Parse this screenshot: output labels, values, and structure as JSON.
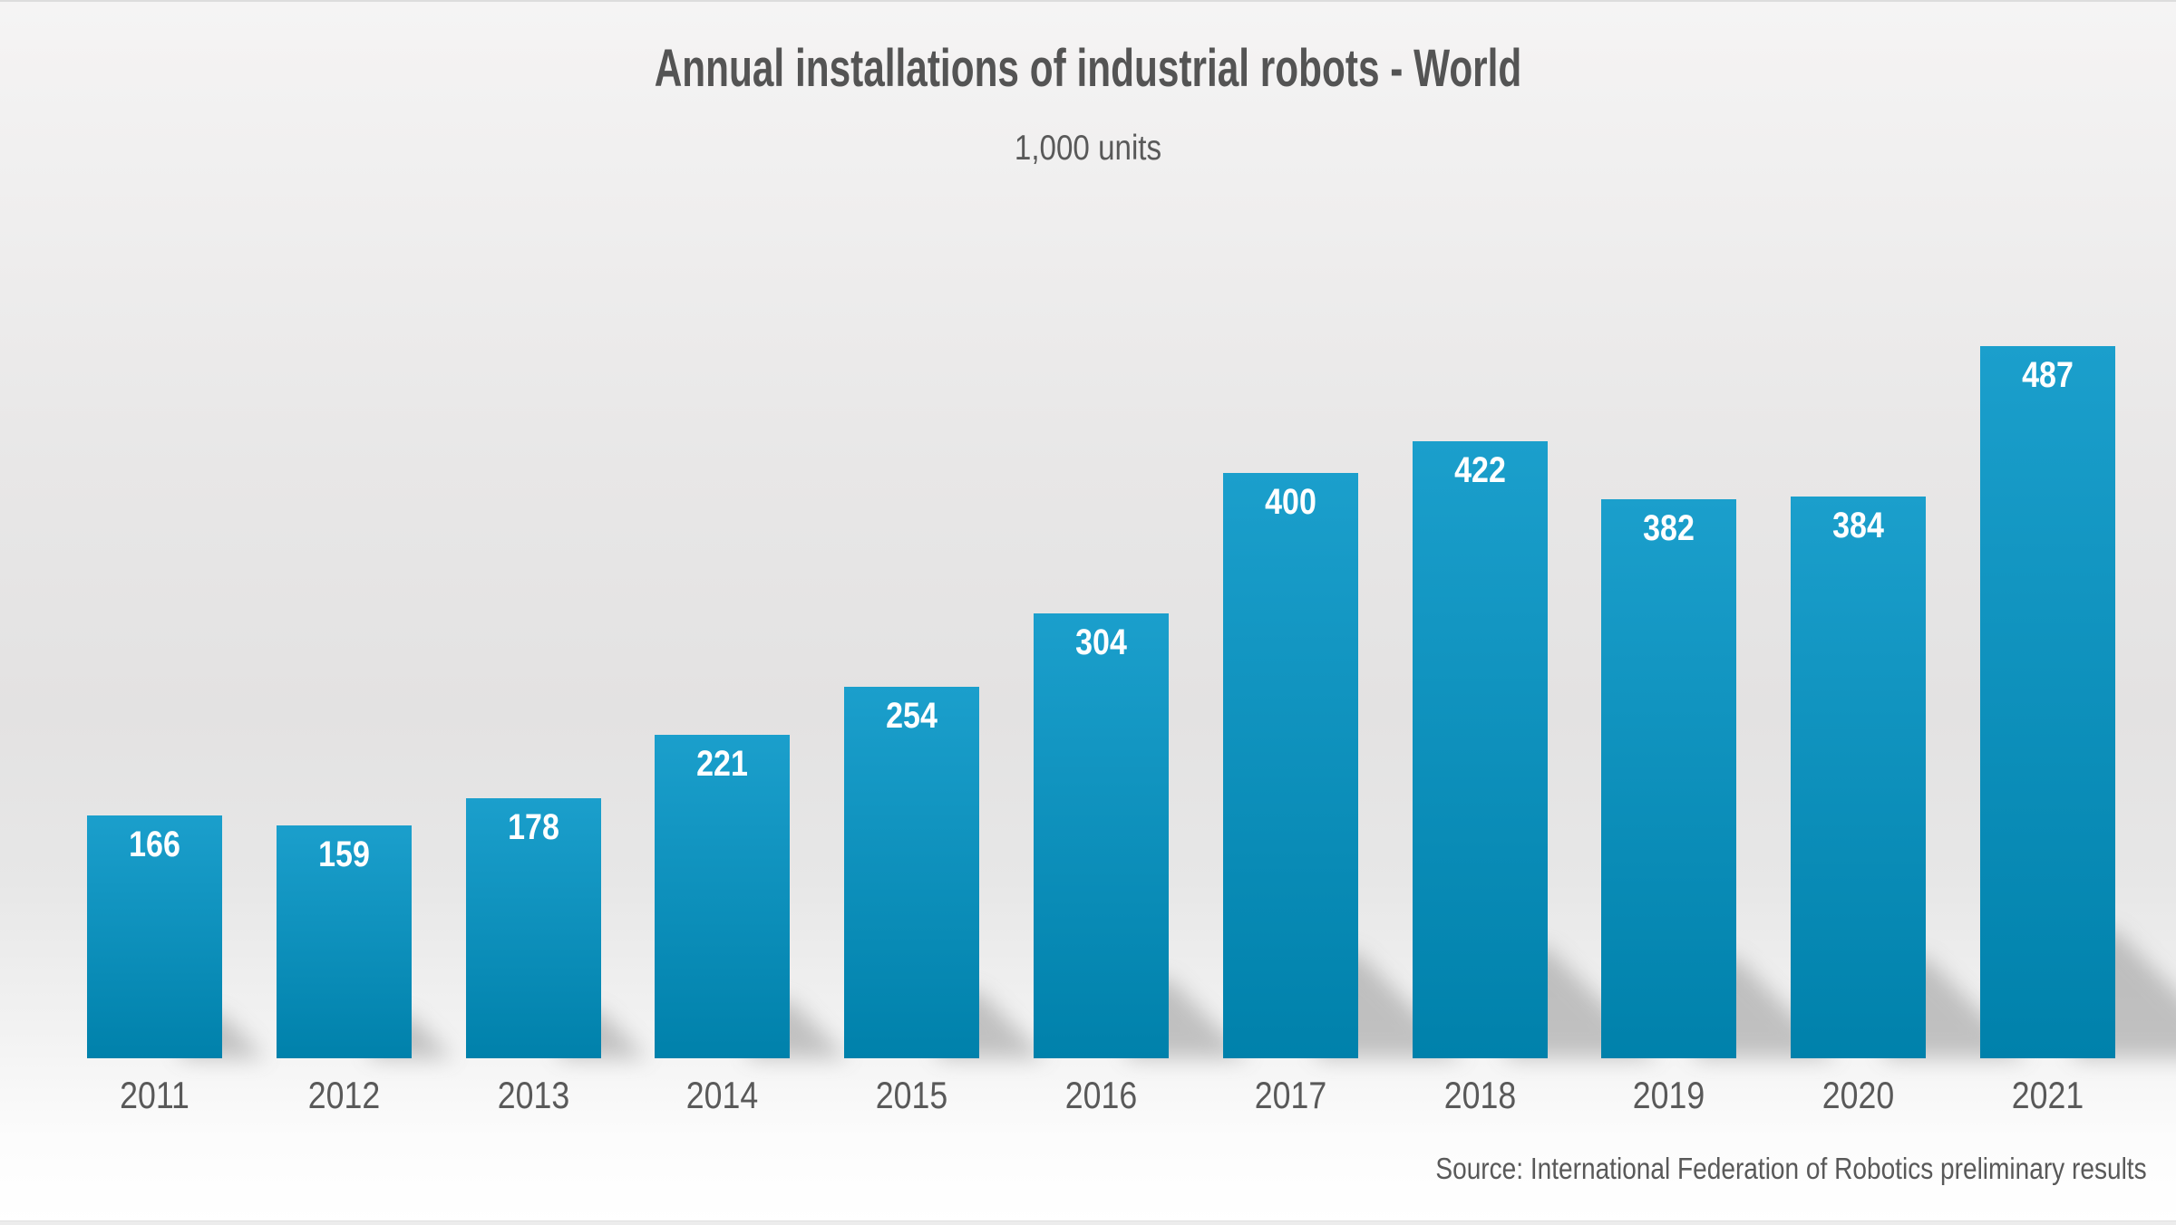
{
  "chart_data": {
    "type": "bar",
    "title": "Annual installations of industrial robots - World",
    "subtitle": "1,000 units",
    "categories": [
      "2011",
      "2012",
      "2013",
      "2014",
      "2015",
      "2016",
      "2017",
      "2018",
      "2019",
      "2020",
      "2021"
    ],
    "values": [
      166,
      159,
      178,
      221,
      254,
      304,
      400,
      422,
      382,
      384,
      487
    ],
    "value_labels": [
      "166",
      "159",
      "178",
      "221",
      "254",
      "304",
      "400",
      "422",
      "382",
      "384",
      "487"
    ],
    "source": "Source: International Federation of Robotics preliminary results",
    "xlabel": "",
    "ylabel": "",
    "ylim": [
      0,
      520
    ],
    "grid": false,
    "legend": "none",
    "value_labels_position": "inside-top",
    "colors": {
      "bar_gradient_top": "#1b9fcc",
      "bar_gradient_bottom": "#0081ab",
      "value_label_text": "#ffffff",
      "axis_text": "#595959",
      "title_text": "#545454",
      "shadow": "#777777"
    }
  }
}
